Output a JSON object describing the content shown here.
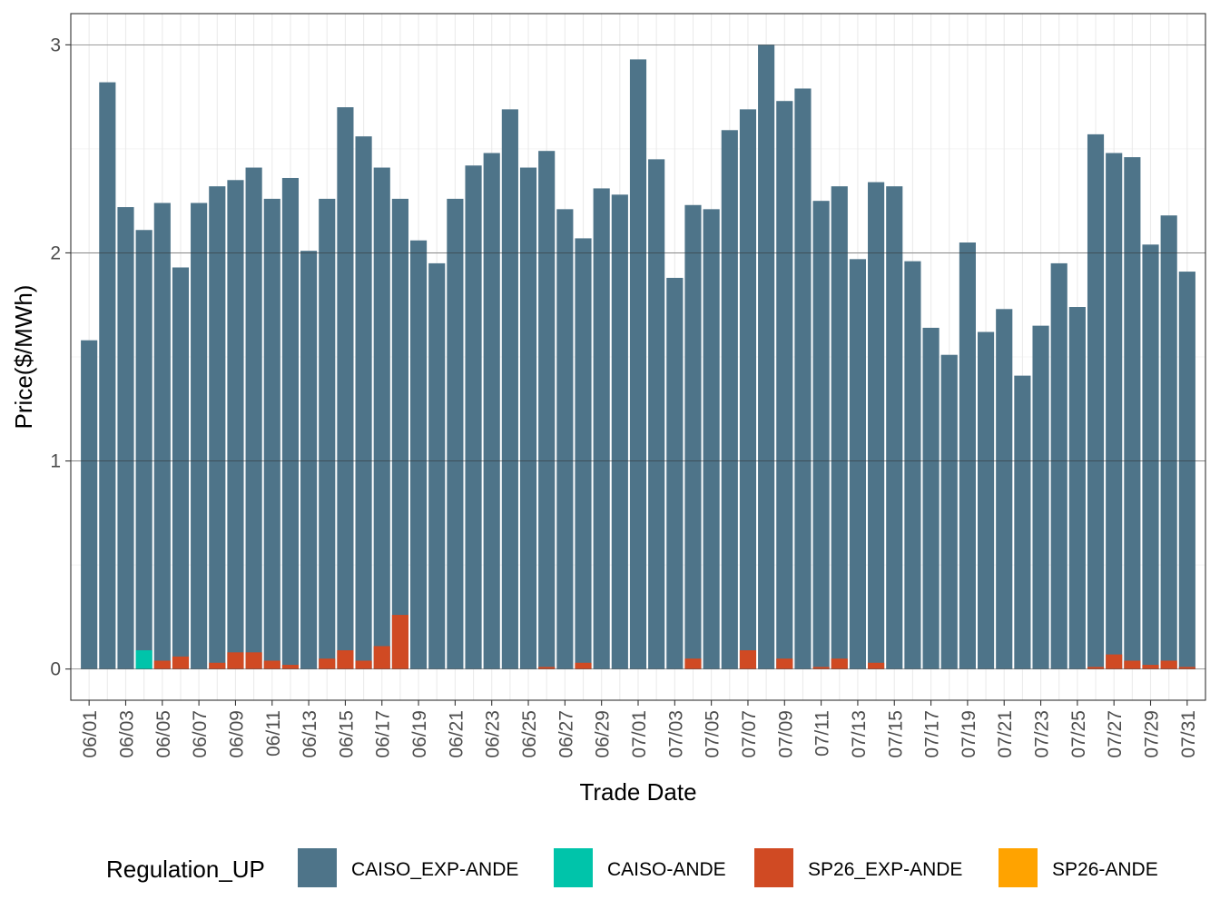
{
  "chart_data": {
    "type": "bar",
    "stacking": "overlay",
    "title": "",
    "xlabel": "Trade Date",
    "ylabel": "Price($/MWh)",
    "ylim": [
      -0.15,
      3.15
    ],
    "yticks": [
      0,
      1,
      2,
      3
    ],
    "grid": true,
    "legend_title": "Regulation_UP",
    "legend_position": "bottom",
    "categories": [
      "06/01",
      "06/02",
      "06/03",
      "06/04",
      "06/05",
      "06/06",
      "06/07",
      "06/08",
      "06/09",
      "06/10",
      "06/11",
      "06/12",
      "06/13",
      "06/14",
      "06/15",
      "06/16",
      "06/17",
      "06/18",
      "06/19",
      "06/20",
      "06/21",
      "06/22",
      "06/23",
      "06/24",
      "06/25",
      "06/26",
      "06/27",
      "06/28",
      "06/29",
      "06/30",
      "07/01",
      "07/02",
      "07/03",
      "07/04",
      "07/05",
      "07/06",
      "07/07",
      "07/08",
      "07/09",
      "07/10",
      "07/11",
      "07/12",
      "07/13",
      "07/14",
      "07/15",
      "07/16",
      "07/17",
      "07/18",
      "07/19",
      "07/20",
      "07/21",
      "07/22",
      "07/23",
      "07/24",
      "07/25",
      "07/26",
      "07/27",
      "07/28",
      "07/29",
      "07/30",
      "07/31"
    ],
    "x_tick_labels": [
      "06/01",
      "06/03",
      "06/05",
      "06/07",
      "06/09",
      "06/11",
      "06/13",
      "06/15",
      "06/17",
      "06/19",
      "06/21",
      "06/23",
      "06/25",
      "06/27",
      "06/29",
      "07/01",
      "07/03",
      "07/05",
      "07/07",
      "07/09",
      "07/11",
      "07/13",
      "07/15",
      "07/17",
      "07/19",
      "07/21",
      "07/23",
      "07/25",
      "07/27",
      "07/29",
      "07/31"
    ],
    "series": [
      {
        "name": "CAISO_EXP-ANDE",
        "color": "#4E7489",
        "values": [
          1.58,
          2.82,
          2.22,
          2.11,
          2.24,
          1.93,
          2.24,
          2.32,
          2.35,
          2.41,
          2.26,
          2.36,
          2.01,
          2.26,
          2.7,
          2.56,
          2.41,
          2.26,
          2.06,
          1.95,
          2.26,
          2.42,
          2.48,
          2.69,
          2.41,
          2.49,
          2.21,
          2.07,
          2.31,
          2.28,
          2.93,
          2.45,
          1.88,
          2.23,
          2.21,
          2.59,
          2.69,
          3.0,
          2.73,
          2.79,
          2.25,
          2.32,
          1.97,
          2.34,
          2.32,
          1.96,
          1.64,
          1.51,
          2.05,
          1.62,
          1.73,
          1.41,
          1.65,
          1.95,
          1.74,
          2.57,
          2.48,
          2.46,
          2.04,
          2.18,
          1.91
        ]
      },
      {
        "name": "CAISO-ANDE",
        "color": "#00C4AA",
        "values": [
          0,
          0,
          0,
          0.09,
          0,
          0,
          0,
          0,
          0,
          0,
          0,
          0,
          0,
          0,
          0,
          0,
          0,
          0,
          0,
          0,
          0,
          0,
          0,
          0,
          0,
          0,
          0,
          0,
          0,
          0,
          0,
          0,
          0,
          0,
          0,
          0,
          0,
          0,
          0,
          0,
          0,
          0,
          0,
          0,
          0,
          0,
          0,
          0,
          0,
          0,
          0,
          0,
          0,
          0,
          0,
          0,
          0,
          0,
          0,
          0,
          0
        ]
      },
      {
        "name": "SP26_EXP-ANDE",
        "color": "#D04A23",
        "values": [
          0,
          0,
          0,
          0,
          0.04,
          0.06,
          0,
          0.03,
          0.08,
          0.08,
          0.04,
          0.02,
          0,
          0.05,
          0.09,
          0.04,
          0.11,
          0.26,
          0,
          0,
          0,
          0,
          0,
          0,
          0,
          0.01,
          0,
          0.03,
          0,
          0,
          0,
          0,
          0,
          0.05,
          0,
          0,
          0.09,
          0,
          0.05,
          0,
          0.01,
          0.05,
          0,
          0.03,
          0,
          0,
          0,
          0,
          0,
          0,
          0,
          0,
          0,
          0,
          0,
          0.01,
          0.07,
          0.04,
          0.02,
          0.04,
          0.01
        ]
      },
      {
        "name": "SP26-ANDE",
        "color": "#FFA300",
        "values": [
          0,
          0,
          0,
          0,
          0,
          0,
          0,
          0,
          0,
          0,
          0,
          0,
          0,
          0,
          0,
          0,
          0,
          0,
          0,
          0,
          0,
          0,
          0,
          0,
          0,
          0,
          0,
          0,
          0,
          0,
          0,
          0,
          0,
          0,
          0,
          0,
          0,
          0,
          0,
          0,
          0,
          0,
          0,
          0,
          0,
          0,
          0,
          0,
          0,
          0,
          0,
          0,
          0,
          0,
          0,
          0,
          0,
          0,
          0,
          0,
          0
        ]
      }
    ]
  }
}
